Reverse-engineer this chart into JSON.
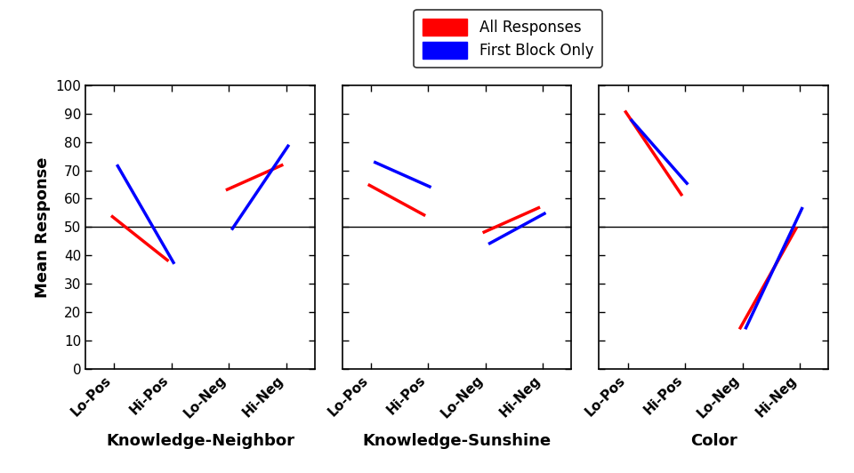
{
  "subplots": [
    {
      "title": "Knowledge-Neighbor",
      "x_labels": [
        "Lo-Pos",
        "Hi-Pos",
        "Lo-Neg",
        "Hi-Neg"
      ],
      "all_responses": [
        54,
        38,
        63,
        72
      ],
      "first_block": [
        72,
        37,
        49,
        79
      ]
    },
    {
      "title": "Knowledge-Sunshine",
      "x_labels": [
        "Lo-Pos",
        "Hi-Pos",
        "Lo-Neg",
        "Hi-Neg"
      ],
      "all_responses": [
        65,
        54,
        48,
        57
      ],
      "first_block": [
        73,
        64,
        44,
        55
      ]
    },
    {
      "title": "Color",
      "x_labels": [
        "Lo-Pos",
        "Hi-Pos",
        "Lo-Neg",
        "Hi-Neg"
      ],
      "all_responses": [
        91,
        61,
        14,
        50
      ],
      "first_block": [
        88,
        65,
        14,
        57
      ]
    }
  ],
  "ylabel": "Mean Response",
  "ylim": [
    0,
    100
  ],
  "yticks": [
    0,
    10,
    20,
    30,
    40,
    50,
    60,
    70,
    80,
    90,
    100
  ],
  "hline_y": 50,
  "color_all": "#FF0000",
  "color_first": "#0000FF",
  "legend_labels": [
    "All Responses",
    "First Block Only"
  ],
  "line_width": 2.5,
  "tick_label_fontsize": 11,
  "axis_label_fontsize": 13,
  "title_fontsize": 13
}
